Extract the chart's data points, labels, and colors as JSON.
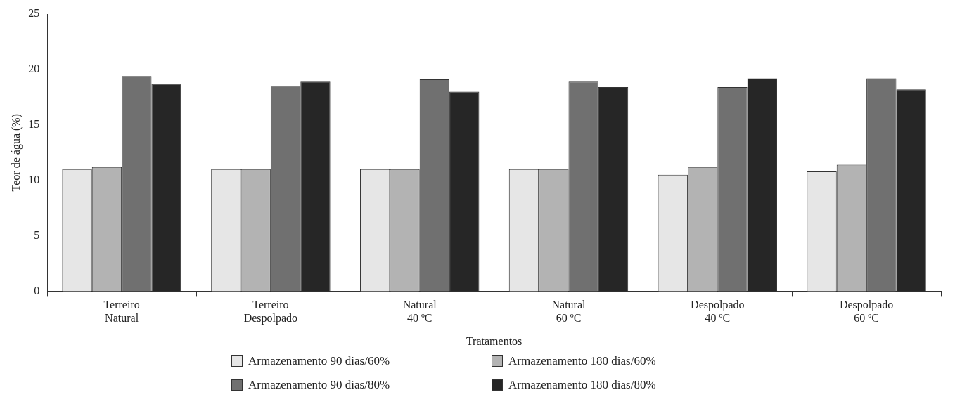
{
  "chart_data": {
    "type": "bar",
    "xlabel": "Tratamentos",
    "ylabel": "Teor de água (%)",
    "categories": [
      "Terreiro\nNatural",
      "Terreiro\nDespolpado",
      "Natural\n40 ºC",
      "Natural\n60 ºC",
      "Despolpado\n40 ºC",
      "Despolpado\n60 ºC"
    ],
    "series": [
      {
        "name": "Armazenamento 90 dias/60%",
        "color": "#e6e6e6",
        "values": [
          11.0,
          11.0,
          11.0,
          11.0,
          10.5,
          10.8
        ]
      },
      {
        "name": "Armazenamento 180 dias/60%",
        "color": "#b3b3b3",
        "values": [
          11.2,
          11.0,
          11.0,
          11.0,
          11.2,
          11.4
        ]
      },
      {
        "name": "Armazenamento 90 dias/80%",
        "color": "#707070",
        "values": [
          19.4,
          18.5,
          19.1,
          18.9,
          18.4,
          19.2
        ]
      },
      {
        "name": "Armazenamento 180 dias/80%",
        "color": "#262626",
        "values": [
          18.7,
          18.9,
          18.0,
          18.4,
          19.2,
          18.2
        ]
      }
    ],
    "ylim": [
      0,
      25
    ],
    "yticks": [
      0,
      5,
      10,
      15,
      20,
      25
    ],
    "grid": false,
    "legend": "bottom"
  }
}
